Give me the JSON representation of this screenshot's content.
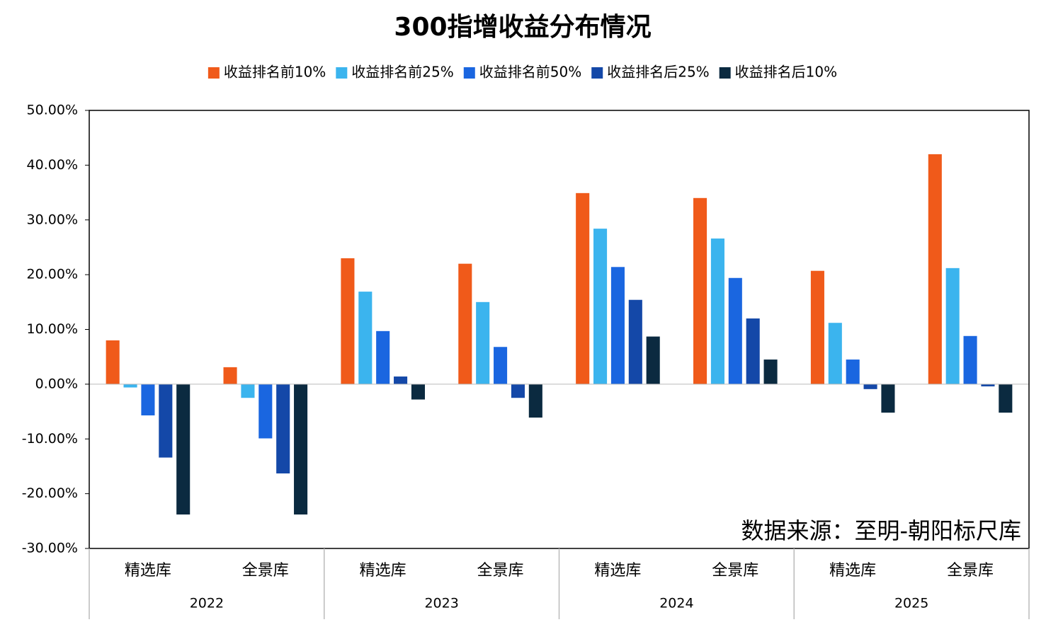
{
  "chart_data": {
    "type": "bar",
    "title": "300指增收益分布情况",
    "annotation": "数据来源：至明-朝阳标尺库",
    "categories": [
      "精选库",
      "全景库",
      "精选库",
      "全景库",
      "精选库",
      "全景库",
      "精选库",
      "全景库"
    ],
    "category_groups": [
      "2022",
      "2023",
      "2024",
      "2025"
    ],
    "series": [
      {
        "name": "收益排名前10%",
        "color": "#f05a1a",
        "values": [
          8.0,
          3.1,
          23.0,
          22.0,
          34.9,
          34.0,
          20.7,
          42.0
        ]
      },
      {
        "name": "收益排名前25%",
        "color": "#3bb4ee",
        "values": [
          -0.6,
          -2.5,
          16.9,
          15.0,
          28.4,
          26.6,
          11.2,
          21.2
        ]
      },
      {
        "name": "收益排名前50%",
        "color": "#1a66e0",
        "values": [
          -5.7,
          -9.9,
          9.7,
          6.8,
          21.4,
          19.4,
          4.5,
          8.8
        ]
      },
      {
        "name": "收益排名后25%",
        "color": "#1448a8",
        "values": [
          -13.4,
          -16.3,
          1.4,
          -2.5,
          15.4,
          12.0,
          -0.9,
          -0.4
        ]
      },
      {
        "name": "收益排名后10%",
        "color": "#0b2a40",
        "values": [
          -23.8,
          -23.8,
          -2.8,
          -6.1,
          8.7,
          4.5,
          -5.2,
          -5.2
        ]
      }
    ],
    "ylim": [
      -30,
      50
    ],
    "yticks": [
      {
        "value": -30,
        "label": "-30.00%"
      },
      {
        "value": -20,
        "label": "-20.00%"
      },
      {
        "value": -10,
        "label": "-10.00%"
      },
      {
        "value": 0,
        "label": "0.00%"
      },
      {
        "value": 10,
        "label": "10.00%"
      },
      {
        "value": 20,
        "label": "20.00%"
      },
      {
        "value": 30,
        "label": "30.00%"
      },
      {
        "value": 40,
        "label": "40.00%"
      },
      {
        "value": 50,
        "label": "50.00%"
      }
    ],
    "legend_position": "top"
  }
}
